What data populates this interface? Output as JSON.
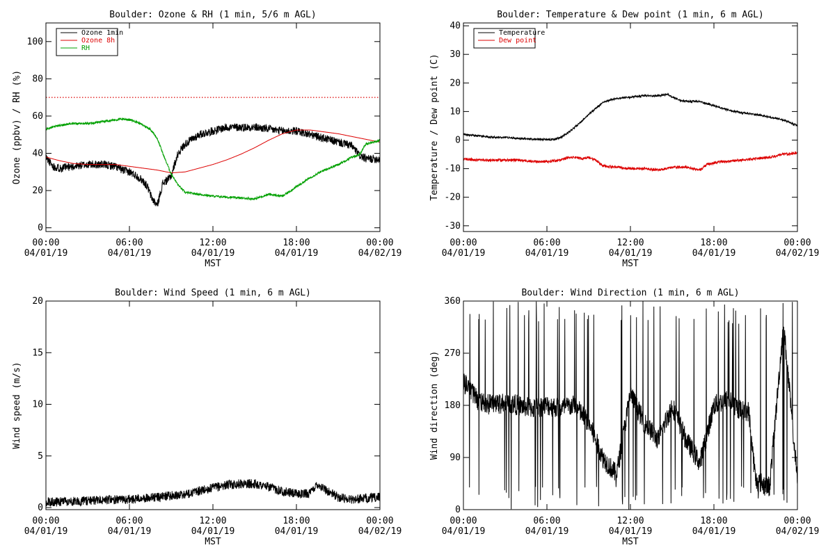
{
  "chart_data": [
    {
      "type": "line",
      "title": "Boulder: Ozone & RH (1 min, 5/6 m AGL)",
      "xlabel": "MST",
      "ylabel": "Ozone (ppbv) / RH (%)",
      "x_ticks": [
        [
          "00:00",
          "04/01/19"
        ],
        [
          "06:00",
          "04/01/19"
        ],
        [
          "12:00",
          "04/01/19"
        ],
        [
          "18:00",
          "04/01/19"
        ],
        [
          "00:00",
          "04/02/19"
        ]
      ],
      "xlim": [
        0,
        24
      ],
      "ylim": [
        -2,
        110
      ],
      "yticks": [
        0,
        20,
        40,
        60,
        80,
        100
      ],
      "legend_placement": "top-left",
      "reference_line": {
        "y": 70,
        "color": "#dd0000",
        "style": "dotted"
      },
      "series": [
        {
          "name": "Ozone 1min",
          "color": "#000000",
          "noise": 2.2,
          "seed": 11,
          "x": [
            0,
            0.5,
            1,
            2,
            3,
            4,
            5,
            5.5,
            6,
            6.5,
            7,
            7.3,
            7.6,
            8,
            8.2,
            8.4,
            8.6,
            8.8,
            9.0,
            9.2,
            9.5,
            10,
            11,
            12,
            13,
            14,
            15,
            16,
            17,
            18,
            19,
            20,
            21,
            22,
            22.5,
            23,
            24
          ],
          "y": [
            38,
            33,
            32,
            33,
            34,
            34,
            33,
            31,
            30,
            28,
            25,
            22,
            16,
            12,
            18,
            24,
            25,
            26,
            28,
            33,
            40,
            45,
            50,
            52,
            54,
            54,
            54,
            53,
            52,
            52,
            50,
            48,
            46,
            44,
            39,
            37,
            37
          ]
        },
        {
          "name": "Ozone 8h",
          "color": "#dd0000",
          "noise": 0,
          "seed": 0,
          "x": [
            0,
            1,
            2,
            3,
            4,
            5,
            6,
            7,
            8,
            9,
            10,
            11,
            12,
            13,
            14,
            15,
            16,
            17,
            18,
            19,
            20,
            21,
            22,
            23,
            24
          ],
          "y": [
            38,
            36,
            34.5,
            34,
            34,
            34,
            33,
            32,
            31,
            29.5,
            30,
            32,
            34,
            36.5,
            39.5,
            43,
            47,
            50.5,
            52.5,
            52.5,
            51.5,
            50.5,
            49,
            47.5,
            46
          ]
        },
        {
          "name": "RH",
          "color": "#00a000",
          "noise": 0.6,
          "seed": 23,
          "x": [
            0,
            1,
            2,
            3,
            4,
            5,
            5.5,
            6,
            6.5,
            7,
            7.5,
            8,
            8.5,
            9,
            9.5,
            10,
            11,
            12,
            13,
            14,
            15,
            16,
            17,
            18,
            19,
            20,
            21,
            22,
            22.5,
            23,
            24
          ],
          "y": [
            53,
            55,
            56,
            56,
            57,
            58,
            58.5,
            58,
            57,
            55,
            53,
            48,
            38,
            29,
            23,
            19,
            18,
            17,
            16.5,
            16,
            15.5,
            18,
            17,
            22,
            27,
            31,
            34,
            38,
            39,
            45,
            47
          ]
        }
      ]
    },
    {
      "type": "line",
      "title": "Boulder: Temperature & Dew point (1 min, 6 m AGL)",
      "xlabel": "MST",
      "ylabel": "Temperature / Dew point (C)",
      "x_ticks": [
        [
          "00:00",
          "04/01/19"
        ],
        [
          "06:00",
          "04/01/19"
        ],
        [
          "12:00",
          "04/01/19"
        ],
        [
          "18:00",
          "04/01/19"
        ],
        [
          "00:00",
          "04/02/19"
        ]
      ],
      "xlim": [
        0,
        24
      ],
      "ylim": [
        -32,
        41
      ],
      "yticks": [
        -30,
        -20,
        -10,
        0,
        10,
        20,
        30,
        40
      ],
      "legend_placement": "top-left",
      "series": [
        {
          "name": "Temperature",
          "color": "#000000",
          "noise": 0.35,
          "seed": 37,
          "x": [
            0,
            1,
            2,
            3,
            4,
            5,
            6,
            6.5,
            7,
            7.5,
            8,
            8.5,
            9,
            9.5,
            10,
            10.5,
            11,
            12,
            13,
            14,
            14.7,
            15,
            15.5,
            16,
            17,
            18,
            19,
            20,
            21,
            22,
            23,
            23.5,
            24
          ],
          "y": [
            2,
            1.5,
            1,
            1,
            0.5,
            0.3,
            0.2,
            0.2,
            1,
            2.5,
            4.5,
            6.5,
            9,
            11,
            13,
            14,
            14.5,
            15,
            15.5,
            15.5,
            16,
            15,
            14,
            13.5,
            13.5,
            12,
            10.5,
            9.5,
            9,
            8,
            7,
            6,
            5
          ]
        },
        {
          "name": "Dew point",
          "color": "#dd0000",
          "noise": 0.45,
          "seed": 53,
          "x": [
            0,
            1,
            2,
            3,
            4,
            5,
            6,
            7,
            7.5,
            8,
            8.5,
            9,
            9.5,
            10,
            11,
            12,
            13,
            14,
            15,
            16,
            17,
            17.5,
            18,
            18.5,
            19,
            20,
            21,
            22,
            23,
            24
          ],
          "y": [
            -6.5,
            -7,
            -7,
            -7,
            -7,
            -7.5,
            -7.5,
            -7,
            -6,
            -6,
            -6.5,
            -6,
            -7,
            -9,
            -9.5,
            -10,
            -10,
            -10.5,
            -9.5,
            -9.5,
            -10.5,
            -8.5,
            -8,
            -7.5,
            -7.5,
            -7,
            -6.5,
            -6,
            -5,
            -4.5
          ]
        }
      ]
    },
    {
      "type": "line",
      "title": "Boulder: Wind Speed (1 min, 6 m AGL)",
      "xlabel": "MST",
      "ylabel": "Wind speed (m/s)",
      "x_ticks": [
        [
          "00:00",
          "04/01/19"
        ],
        [
          "06:00",
          "04/01/19"
        ],
        [
          "12:00",
          "04/01/19"
        ],
        [
          "18:00",
          "04/01/19"
        ],
        [
          "00:00",
          "04/02/19"
        ]
      ],
      "xlim": [
        0,
        24
      ],
      "ylim": [
        -0.2,
        20
      ],
      "yticks": [
        0,
        5,
        10,
        15,
        20
      ],
      "series": [
        {
          "color": "#000000",
          "noise": 0.45,
          "seed": 71,
          "x": [
            0,
            2,
            4,
            6,
            8,
            10,
            11,
            12,
            13,
            14,
            15,
            16,
            17,
            18,
            19,
            19.5,
            20,
            21,
            22,
            23,
            24
          ],
          "y": [
            0.5,
            0.6,
            0.7,
            0.8,
            1.0,
            1.3,
            1.6,
            1.9,
            2.2,
            2.3,
            2.3,
            2.0,
            1.6,
            1.3,
            1.4,
            2.3,
            1.8,
            1.0,
            0.8,
            0.9,
            1.0
          ]
        }
      ]
    },
    {
      "type": "line",
      "title": "Boulder: Wind Direction (1 min, 6 m AGL)",
      "xlabel": "MST",
      "ylabel": "Wind direction (deg)",
      "x_ticks": [
        [
          "00:00",
          "04/01/19"
        ],
        [
          "06:00",
          "04/01/19"
        ],
        [
          "12:00",
          "04/01/19"
        ],
        [
          "18:00",
          "04/01/19"
        ],
        [
          "00:00",
          "04/02/19"
        ]
      ],
      "xlim": [
        0,
        24
      ],
      "ylim": [
        0,
        360
      ],
      "yticks": [
        0,
        90,
        180,
        270,
        360
      ],
      "series": [
        {
          "color": "#000000",
          "noise": 18,
          "seed": 89,
          "spike_rate": 0.06,
          "x": [
            0,
            1,
            2,
            3,
            4,
            5,
            6,
            7,
            8,
            9,
            10,
            11,
            12,
            13,
            14,
            15,
            16,
            17,
            18,
            19,
            20,
            20.5,
            21,
            22,
            23,
            24
          ],
          "y": [
            220,
            190,
            180,
            185,
            180,
            175,
            180,
            175,
            180,
            150,
            90,
            60,
            200,
            150,
            120,
            180,
            120,
            80,
            180,
            190,
            170,
            170,
            50,
            40,
            320,
            50
          ]
        }
      ]
    }
  ]
}
